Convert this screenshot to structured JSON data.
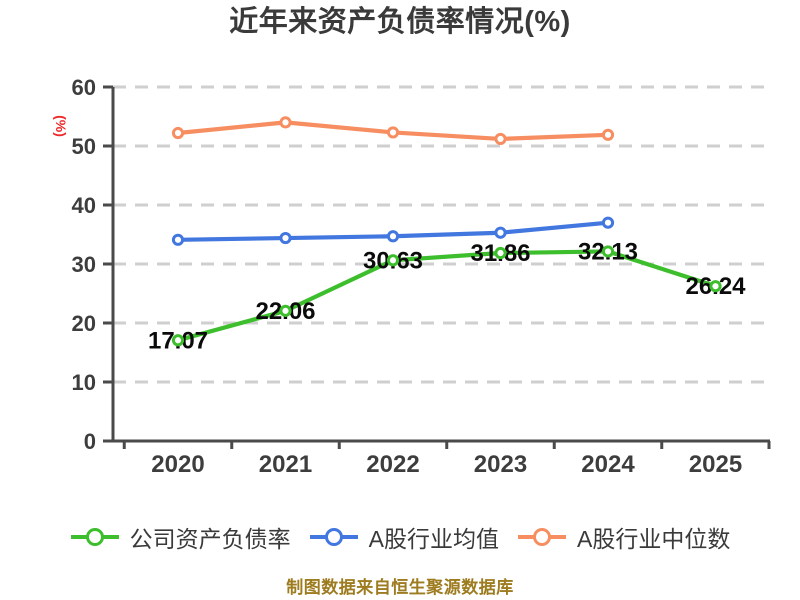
{
  "footer": {
    "text": "制图数据来自恒生聚源数据库"
  },
  "colors": {
    "background": "#ffffff",
    "title": "#3a3a3a",
    "axis": "#4a4a4a",
    "grid": "#cfcfcf",
    "tick_label": "#3d3d3d",
    "data_label": "#0b0b0b",
    "ylabel": "#ee2a2a",
    "footer": "#9d7b1f",
    "legend_text": "#3a3a3a",
    "company_line": "#3dbe2c",
    "industry_avg_line": "#4277e0",
    "industry_median_line": "#f78e61"
  },
  "chart_data": {
    "type": "line",
    "title": "近年来资产负债率情况(%)",
    "ylabel": "(%)",
    "xlabel": "",
    "categories": [
      "2020",
      "2021",
      "2022",
      "2023",
      "2024",
      "2025"
    ],
    "series": [
      {
        "name": "公司资产负债率",
        "color": "#3dbe2c",
        "values": [
          17.07,
          22.06,
          30.63,
          31.86,
          32.13,
          26.24
        ],
        "point_labels": [
          "17.07",
          "22.06",
          "30.63",
          "31.86",
          "32.13",
          "26.24"
        ]
      },
      {
        "name": "A股行业均值",
        "color": "#4277e0",
        "values": [
          34.1,
          34.4,
          34.7,
          35.3,
          37.0
        ]
      },
      {
        "name": "A股行业中位数",
        "color": "#f78e61",
        "values": [
          52.2,
          54.0,
          52.3,
          51.2,
          51.9
        ]
      }
    ],
    "ylim": [
      0,
      60
    ],
    "yticks": [
      0,
      10,
      20,
      30,
      40,
      50,
      60
    ],
    "grid": "horizontal-dashed",
    "legend_position": "bottom",
    "marker_style": "white-filled-circle"
  }
}
